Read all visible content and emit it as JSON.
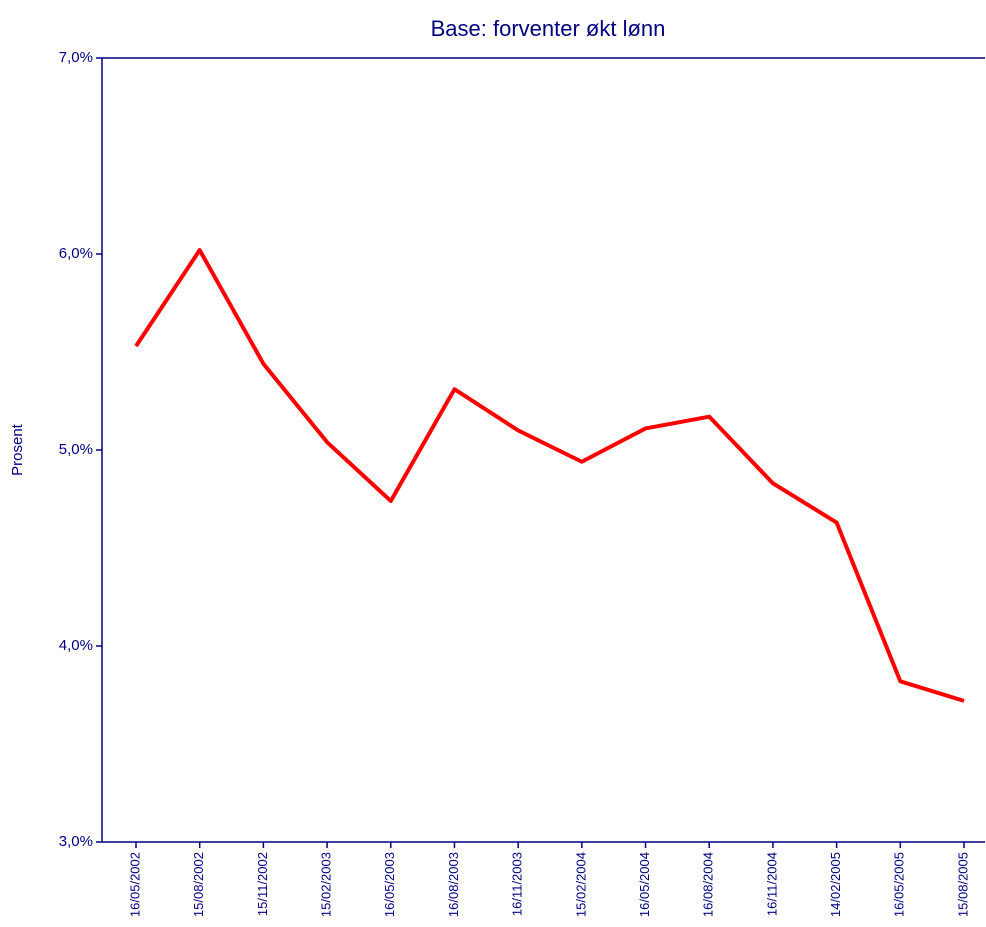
{
  "chart_data": {
    "type": "line",
    "title": "Base: forventer økt lønn",
    "y_label": "Prosent",
    "categories": [
      "16/05/2002",
      "15/08/2002",
      "15/11/2002",
      "15/02/2003",
      "16/05/2003",
      "16/08/2003",
      "16/11/2003",
      "15/02/2004",
      "16/05/2004",
      "16/08/2004",
      "16/11/2004",
      "14/02/2005",
      "16/05/2005",
      "15/08/2005"
    ],
    "series": [
      {
        "name": "Base",
        "color": "#ff0000",
        "values": [
          5.53,
          6.02,
          5.44,
          5.04,
          4.74,
          5.31,
          5.1,
          4.94,
          5.11,
          5.17,
          4.83,
          4.63,
          3.82,
          3.72
        ]
      }
    ],
    "ylim": [
      3,
      7
    ],
    "yticks": [
      {
        "value": 3,
        "label": "3,0%"
      },
      {
        "value": 4,
        "label": "4,0%"
      },
      {
        "value": 5,
        "label": "5,0%"
      },
      {
        "value": 6,
        "label": "6,0%"
      },
      {
        "value": 7,
        "label": "7,0%"
      }
    ],
    "grid": false
  }
}
